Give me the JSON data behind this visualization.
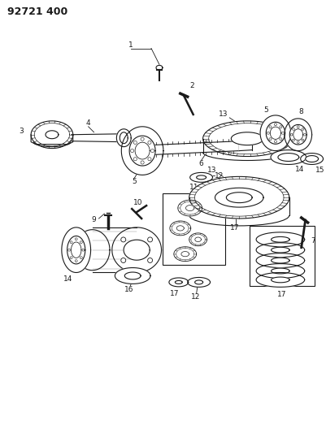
{
  "title": "92721 400",
  "bg_color": "#ffffff",
  "fg_color": "#1a1a1a",
  "fig_width": 4.01,
  "fig_height": 5.33,
  "dpi": 100,
  "lw": 0.8
}
